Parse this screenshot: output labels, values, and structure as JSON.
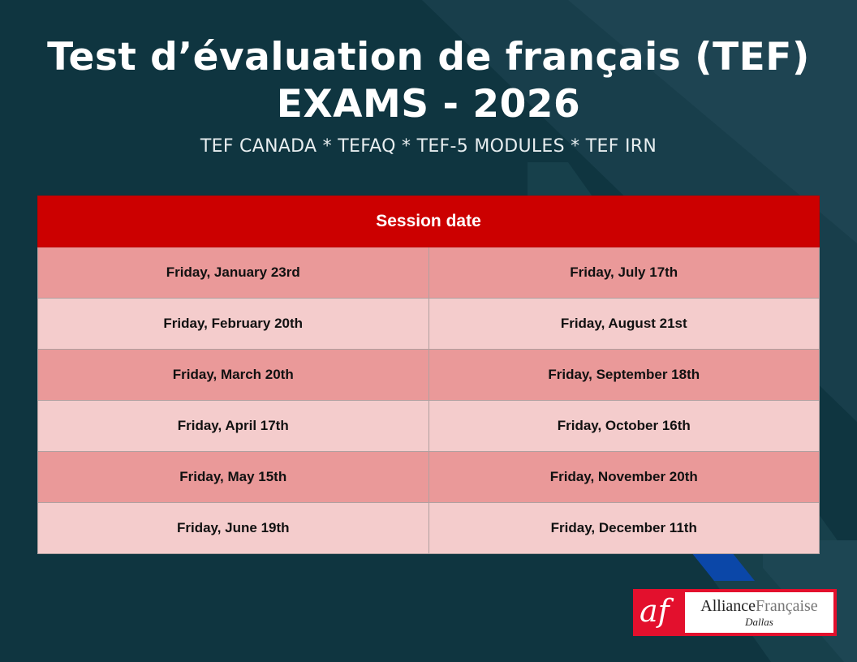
{
  "header": {
    "title_line1": "Test d’évaluation de français (TEF)",
    "title_line2": "EXAMS - 2026",
    "subtitle": "TEF CANADA * TEFAQ * TEF-5 MODULES * TEF IRN"
  },
  "table": {
    "header": "Session date",
    "rows": [
      [
        "Friday, January 23rd",
        "Friday, July 17th"
      ],
      [
        "Friday, February 20th",
        "Friday, August 21st"
      ],
      [
        "Friday, March 20th",
        "Friday, September 18th"
      ],
      [
        "Friday, April 17th",
        "Friday, October 16th"
      ],
      [
        "Friday, May 15th",
        "Friday, November 20th"
      ],
      [
        "Friday, June 19th",
        "Friday, December 11th"
      ]
    ]
  },
  "logo": {
    "mark": "af",
    "name_part1": "Alliance",
    "name_part2": "Française",
    "city": "Dallas"
  },
  "colors": {
    "background": "#0f3540",
    "header_red": "#cc0000",
    "row_dark": "#ea9999",
    "row_light": "#f4cccc",
    "accent_blue": "#0b47a8"
  }
}
